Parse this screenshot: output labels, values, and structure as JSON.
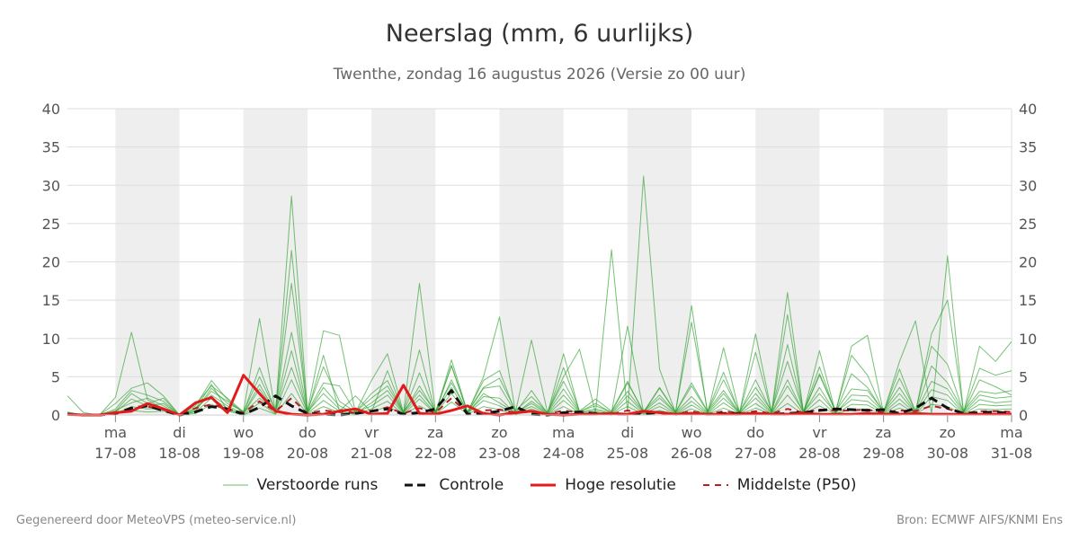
{
  "title": "Neerslag (mm, 6 uurlijks)",
  "subtitle": "Twenthe, zondag 16 augustus 2026 (Versie zo 00 uur)",
  "footer": {
    "left": "Gegenereerd door MeteoVPS (meteo-service.nl)",
    "right": "Bron: ECMWF AIFS/KNMI Ens"
  },
  "colors": {
    "ensemble": "#2ca02c",
    "control": "#111111",
    "highres": "#e31a1c",
    "median": "#b22222",
    "weekend_band": "#eeeeee",
    "grid": "#dddddd"
  },
  "legend": [
    {
      "label": "Verstoorde runs",
      "style": "thin-green-line"
    },
    {
      "label": "Controle",
      "style": "black-dashed-line"
    },
    {
      "label": "Hoge resolutie",
      "style": "red-line"
    },
    {
      "label": "Middelste (P50)",
      "style": "dark-red-dashed-line"
    }
  ],
  "chart_data": {
    "type": "line",
    "title": "Neerslag (mm, 6 uurlijks)",
    "ylabel": "",
    "ylim": [
      0,
      40
    ],
    "yticks": [
      0,
      5,
      10,
      15,
      20,
      25,
      30,
      35,
      40
    ],
    "grid": true,
    "legend_position": "bottom",
    "y_axis_sides": "left-and-right",
    "x_unit": "days after 17-08 00:00",
    "xlim": [
      -0.75,
      14
    ],
    "x_tick_labels": [
      {
        "day": "ma",
        "date": "17-08"
      },
      {
        "day": "di",
        "date": "18-08"
      },
      {
        "day": "wo",
        "date": "19-08"
      },
      {
        "day": "do",
        "date": "20-08"
      },
      {
        "day": "vr",
        "date": "21-08"
      },
      {
        "day": "za",
        "date": "22-08"
      },
      {
        "day": "zo",
        "date": "23-08"
      },
      {
        "day": "ma",
        "date": "24-08"
      },
      {
        "day": "di",
        "date": "25-08"
      },
      {
        "day": "wo",
        "date": "26-08"
      },
      {
        "day": "do",
        "date": "27-08"
      },
      {
        "day": "vr",
        "date": "28-08"
      },
      {
        "day": "za",
        "date": "29-08"
      },
      {
        "day": "zo",
        "date": "30-08"
      },
      {
        "day": "ma",
        "date": "31-08"
      }
    ],
    "shaded_bands": [
      [
        0,
        1
      ],
      [
        2,
        3
      ],
      [
        4,
        5
      ],
      [
        6,
        7
      ],
      [
        8,
        9
      ],
      [
        10,
        11
      ],
      [
        12,
        13
      ]
    ],
    "x": [
      -0.75,
      -0.5,
      -0.25,
      0,
      0.25,
      0.5,
      0.75,
      1,
      1.25,
      1.5,
      1.75,
      2,
      2.25,
      2.5,
      2.75,
      3,
      3.25,
      3.5,
      3.75,
      4,
      4.25,
      4.5,
      4.75,
      5,
      5.25,
      5.5,
      5.75,
      6,
      6.25,
      6.5,
      6.75,
      7,
      7.25,
      7.5,
      7.75,
      8,
      8.25,
      8.5,
      8.75,
      9,
      9.25,
      9.5,
      9.75,
      10,
      10.25,
      10.5,
      10.75,
      11,
      11.25,
      11.5,
      11.75,
      12,
      12.25,
      12.5,
      12.75,
      13,
      13.25,
      13.5,
      13.75,
      14
    ],
    "series": [
      {
        "name": "Verstoorde runs",
        "kind": "ensemble",
        "values": [
          2.5,
          0.3,
          0,
          2.3,
          10.8,
          2,
          0.8,
          0,
          0.5,
          3.5,
          1.5,
          0.5,
          12.6,
          0.4,
          28.6,
          0.5,
          11,
          10.4,
          0.3,
          4.5,
          8,
          0.3,
          17.2,
          0.4,
          6.5,
          0.3,
          5,
          12.8,
          0.4,
          9.8,
          0.3,
          5,
          8.6,
          0.3,
          21.6,
          0.4,
          31.2,
          6,
          0.3,
          14.3,
          0.2,
          8.8,
          0.3,
          10.6,
          0.4,
          16,
          0.3,
          8.4,
          0.3,
          9,
          10.4,
          0.3,
          7,
          12.3,
          0.2,
          20.8,
          0.3,
          9,
          7,
          9.6
        ]
      },
      {
        "name": "Verstoorde runs",
        "kind": "ensemble",
        "values": [
          0.3,
          0,
          0,
          1.5,
          3.5,
          4.2,
          2.5,
          0,
          1.2,
          4.5,
          2,
          0.3,
          6.2,
          0.5,
          21.5,
          0.3,
          7.8,
          0.5,
          2.5,
          0.4,
          5.8,
          0.3,
          8.5,
          0.2,
          7.2,
          0.4,
          4.5,
          5.8,
          0.3,
          3.2,
          0.2,
          6.2,
          0.5,
          2.1,
          0.5,
          4.4,
          0.3,
          3.5,
          0.4,
          12.1,
          0.5,
          5.6,
          0.2,
          8.2,
          0.3,
          13.1,
          0.3,
          5.4,
          0.4,
          7.8,
          5.2,
          0.4,
          6,
          0.4,
          10.6,
          15,
          0.4,
          6.1,
          5.2,
          5.8
        ]
      },
      {
        "name": "Verstoorde runs",
        "kind": "ensemble",
        "values": [
          0.1,
          0,
          0,
          0.5,
          2.8,
          1.5,
          2.2,
          0,
          0.8,
          4,
          0.6,
          0.2,
          4,
          0.3,
          17.2,
          0.4,
          4.2,
          3.8,
          0.4,
          2.8,
          4.5,
          0.3,
          5.5,
          0.3,
          6.4,
          0.3,
          3.5,
          3.8,
          0.3,
          1.5,
          0.2,
          8,
          0.4,
          1.5,
          0.3,
          11.6,
          0.4,
          3.6,
          0.4,
          4.2,
          0.5,
          3.2,
          0.3,
          4.6,
          0.4,
          9.2,
          0.4,
          6.3,
          0.3,
          5.4,
          3.6,
          0.4,
          4.8,
          0.5,
          9,
          6.6,
          0.3,
          4.6,
          3.7,
          2.6
        ]
      },
      {
        "name": "Verstoorde runs",
        "kind": "ensemble",
        "values": [
          0.2,
          0,
          0,
          0.8,
          3.2,
          2.6,
          1.8,
          0,
          1.4,
          3.8,
          2.2,
          0.4,
          5,
          0.6,
          10.8,
          0.5,
          6.3,
          1.8,
          0.4,
          2.2,
          3.8,
          0.4,
          3.2,
          0.5,
          4.2,
          0.4,
          3.6,
          4.8,
          0.6,
          2.4,
          0.3,
          4.4,
          0.5,
          1.2,
          0.4,
          4.2,
          0.5,
          2.6,
          0.3,
          3.8,
          0.4,
          4.6,
          0.4,
          3.6,
          0.5,
          7,
          0.4,
          5.2,
          0.5,
          3.4,
          3.2,
          0.5,
          3.6,
          0.4,
          6.4,
          4.2,
          0.5,
          3.1,
          2.8,
          3.2
        ]
      },
      {
        "name": "Verstoorde runs",
        "kind": "ensemble",
        "values": [
          0.4,
          0,
          0,
          0.4,
          2.1,
          1.2,
          1.5,
          0,
          0.9,
          2.6,
          1.2,
          0.2,
          3.4,
          0.4,
          8.4,
          0.2,
          3.6,
          1.2,
          0.2,
          1.6,
          3.2,
          0.3,
          2.6,
          0.2,
          4.6,
          0.3,
          2.4,
          2.2,
          0.2,
          1.8,
          0.3,
          3.4,
          0.4,
          0.8,
          0.3,
          3.1,
          0.4,
          2.2,
          0.3,
          2.4,
          0.3,
          2.8,
          0.2,
          2.8,
          0.3,
          4.6,
          0.3,
          3.6,
          0.2,
          2.6,
          2.5,
          0.4,
          2.8,
          0.3,
          4.4,
          3.4,
          0.3,
          2.6,
          2.2,
          2.4
        ]
      },
      {
        "name": "Verstoorde runs",
        "kind": "ensemble",
        "values": [
          0.2,
          0,
          0,
          0.6,
          1.6,
          2.2,
          1.2,
          0,
          0.6,
          3.1,
          1.8,
          0.3,
          2.2,
          0.5,
          6.2,
          0.4,
          2.8,
          0.8,
          0.3,
          1.2,
          2.6,
          0.2,
          3.8,
          0.3,
          3.6,
          0.2,
          2.8,
          1.6,
          0.3,
          1.1,
          0.2,
          2.6,
          0.3,
          0.6,
          0.2,
          2.5,
          0.3,
          1.6,
          0.2,
          1.8,
          0.2,
          2.2,
          0.3,
          2.2,
          0.2,
          3.8,
          0.4,
          2.8,
          0.3,
          2,
          1.8,
          0.3,
          2.1,
          0.2,
          3.3,
          2.6,
          0.2,
          2,
          1.6,
          1.8
        ]
      },
      {
        "name": "Verstoorde runs",
        "kind": "ensemble",
        "values": [
          0,
          0,
          0,
          0.2,
          1.1,
          0.8,
          0.9,
          0,
          0.4,
          2.2,
          0.9,
          0.1,
          1.6,
          0.2,
          4.6,
          0.2,
          1.9,
          0.5,
          0.1,
          0.8,
          1.8,
          0.1,
          2.1,
          0.2,
          2.8,
          0.2,
          1.9,
          1.2,
          0.1,
          0.8,
          0.1,
          1.9,
          0.2,
          0.4,
          0.1,
          1.8,
          0.2,
          1.1,
          0.1,
          1.3,
          0.1,
          1.6,
          0.2,
          1.5,
          0.1,
          2.6,
          0.2,
          2,
          0.1,
          1.4,
          1.3,
          0.2,
          1.5,
          0.1,
          2.4,
          1.9,
          0.1,
          1.4,
          1.2,
          1.3
        ]
      },
      {
        "name": "Verstoorde runs",
        "kind": "ensemble",
        "values": [
          0,
          0,
          0,
          0.1,
          0.6,
          0.4,
          0.5,
          0,
          0.2,
          1.4,
          0.5,
          0,
          0.9,
          0.1,
          2.8,
          0.1,
          1.1,
          0.3,
          0.1,
          0.4,
          1.1,
          0.1,
          1.2,
          0.1,
          1.7,
          0.1,
          1.1,
          0.7,
          0.1,
          0.5,
          0.1,
          1.1,
          0.1,
          0.2,
          0.1,
          1.1,
          0.1,
          0.6,
          0.1,
          0.8,
          0.1,
          0.9,
          0.1,
          0.9,
          0.1,
          1.5,
          0.1,
          1.2,
          0.1,
          0.8,
          0.8,
          0.1,
          0.9,
          0.1,
          1.4,
          1.1,
          0.1,
          0.8,
          0.7,
          0.8
        ]
      },
      {
        "name": "Controle",
        "kind": "control",
        "values": [
          0.1,
          0,
          0,
          0.2,
          0.9,
          1.2,
          0.6,
          0,
          0.4,
          1.1,
          0.8,
          0.1,
          1,
          2.5,
          1.2,
          0.2,
          0.1,
          0,
          0.2,
          0.5,
          0.8,
          0.1,
          0.3,
          0.8,
          3.2,
          0.1,
          0.2,
          0.5,
          1.1,
          0.1,
          0,
          0.3,
          0.4,
          0.2,
          0.1,
          0.1,
          0.2,
          0.3,
          0.1,
          0.2,
          0.1,
          0.2,
          0.2,
          0.2,
          0.1,
          0.2,
          0.3,
          0.6,
          0.8,
          0.7,
          0.6,
          0.7,
          0.2,
          0.9,
          2.2,
          0.9,
          0.2,
          0.3,
          0.4,
          0.2
        ]
      },
      {
        "name": "Hoge resolutie",
        "kind": "highres",
        "values": [
          0.1,
          0,
          0,
          0.3,
          0.5,
          1.5,
          0.8,
          0,
          1.6,
          2.3,
          0.3,
          5.2,
          2.8,
          0.5,
          0.1,
          0,
          0.1,
          0.5,
          0.8,
          0.1,
          0.2,
          3.9,
          0.2,
          0.1,
          0.6,
          1.2,
          0.2,
          0,
          0.3,
          0.5,
          0.1,
          0,
          0.1,
          0.1,
          0.2,
          0.1,
          0.5,
          0.3,
          0.1,
          0.2,
          0.1,
          0.1,
          0.1,
          0.2,
          0.1,
          0.1,
          0.2,
          0.1,
          0.1,
          0.1,
          0.2,
          0.1,
          0.1,
          0.2,
          0.1,
          0.1,
          0.1,
          0.1,
          0.1,
          0.1
        ]
      },
      {
        "name": "Middelste (P50)",
        "kind": "median",
        "values": [
          0.1,
          0,
          0,
          0.2,
          0.8,
          1.1,
          0.7,
          0,
          0.9,
          1.4,
          0.8,
          0.3,
          1.8,
          0.5,
          2.2,
          0.2,
          0.6,
          0.4,
          0.3,
          0.5,
          1.0,
          0.2,
          0.9,
          0.3,
          2.2,
          0.2,
          0.6,
          0.7,
          0.3,
          0.4,
          0.1,
          0.6,
          0.3,
          0.2,
          0.1,
          0.6,
          0.2,
          0.4,
          0.1,
          0.5,
          0.1,
          0.5,
          0.2,
          0.5,
          0.2,
          0.8,
          0.3,
          0.7,
          0.6,
          0.6,
          0.7,
          0.3,
          0.6,
          0.5,
          1.2,
          0.8,
          0.2,
          0.5,
          0.5,
          0.4
        ]
      }
    ]
  }
}
